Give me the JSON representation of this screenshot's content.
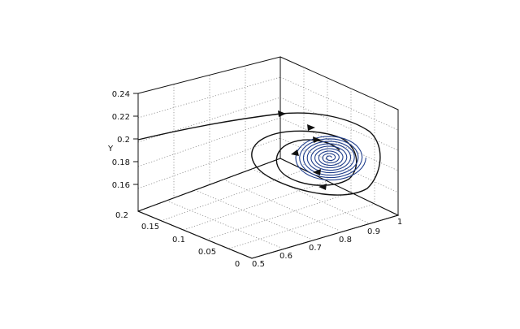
{
  "chart_data": {
    "type": "line",
    "title": "",
    "axes": {
      "y_vertical": {
        "label": "Y",
        "ticks": [
          "0.16",
          "0.18",
          "0.2",
          "0.22",
          "0.24"
        ],
        "range": [
          0.15,
          0.24
        ]
      },
      "depth_left": {
        "label": "",
        "ticks": [
          "0",
          "0.05",
          "0.1",
          "0.15",
          "0.2"
        ],
        "range": [
          0,
          0.2
        ]
      },
      "right_axis": {
        "label": "",
        "ticks": [
          "0.5",
          "0.6",
          "0.7",
          "0.8",
          "0.9",
          "1"
        ],
        "range": [
          0.5,
          1.0
        ]
      }
    },
    "grid": true,
    "legend": "none",
    "series": [
      {
        "description": "trajectory starting near Y=0.2 moving toward equilibrium",
        "colors": [
          "#111111"
        ]
      },
      {
        "description": "inward spiral converging to equilibrium point",
        "colors": [
          "#1f3e8c"
        ]
      }
    ],
    "colors": {
      "outer": "#111111",
      "inner": "#1f3e8c",
      "grid": "#8a8a8a"
    }
  }
}
